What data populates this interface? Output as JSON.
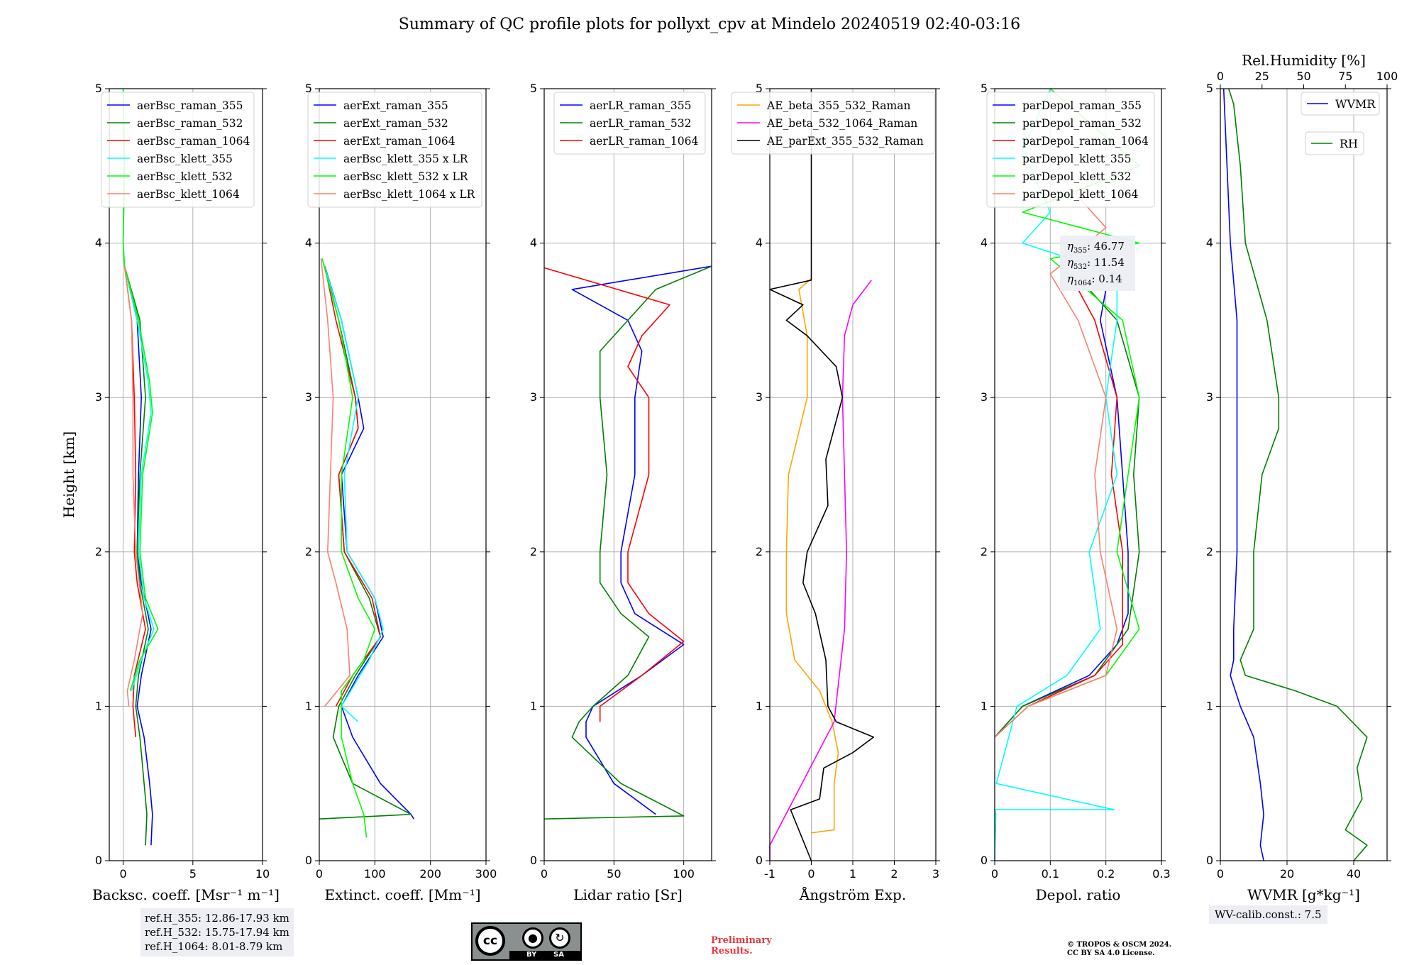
{
  "title": "Summary of QC profile plots for pollyxt_cpv at Mindelo 20240519 02:40-03:16",
  "colors": {
    "raman_355": "#0000ff",
    "raman_532": "#008000",
    "raman_1064": "#ff0000",
    "klett_355": "#00ffff",
    "klett_532": "#00ff00",
    "klett_1064": "#fa8072",
    "ae_beta_355_532": "#ffa500",
    "ae_beta_532_1064": "#ff00ff",
    "ae_parext": "#000000"
  },
  "chart_data": [
    {
      "type": "line",
      "id": "bsc",
      "xlabel": "Backsc. coeff. [Msr⁻¹ m⁻¹]",
      "ylabel": "Height [km]",
      "xlim": [
        -1,
        10
      ],
      "xticks": [
        0,
        5,
        10
      ],
      "ylim": [
        0,
        5
      ],
      "yticks": [
        0,
        1,
        2,
        3,
        4,
        5
      ],
      "grid": true,
      "legend": "top-left",
      "series": [
        {
          "name": "aerBsc_raman_355",
          "color": "#0000ff",
          "y": [
            0.1,
            0.3,
            0.5,
            0.8,
            1.0,
            1.2,
            1.5,
            1.8,
            2.0,
            2.5,
            3.0,
            3.5,
            3.85
          ],
          "x": [
            2.0,
            2.1,
            1.9,
            1.5,
            1.0,
            1.3,
            2.0,
            1.3,
            1.0,
            1.1,
            1.3,
            1.0,
            0.1
          ]
        },
        {
          "name": "aerBsc_raman_532",
          "color": "#008000",
          "y": [
            0.1,
            0.3,
            0.5,
            0.8,
            1.0,
            1.2,
            1.5,
            1.8,
            2.0,
            2.5,
            3.0,
            3.5,
            3.85
          ],
          "x": [
            1.6,
            1.7,
            1.5,
            1.2,
            0.9,
            1.1,
            1.8,
            1.2,
            1.0,
            1.2,
            1.6,
            1.2,
            0.1
          ]
        },
        {
          "name": "aerBsc_raman_1064",
          "color": "#ff0000",
          "y": [
            0.8,
            1.0,
            1.2,
            1.5,
            1.8,
            2.0,
            2.5,
            3.0,
            3.5,
            3.85
          ],
          "x": [
            0.9,
            0.7,
            0.8,
            1.6,
            1.0,
            0.8,
            0.9,
            0.8,
            0.6,
            0.1
          ]
        },
        {
          "name": "aerBsc_klett_355",
          "color": "#00ffff",
          "y": [
            1.1,
            1.3,
            1.5,
            1.7,
            2.0,
            2.5,
            2.9,
            3.1,
            3.5,
            3.85,
            4.0,
            4.5,
            5.0
          ],
          "x": [
            0.6,
            1.3,
            2.2,
            1.5,
            1.1,
            1.3,
            2.0,
            1.8,
            1.0,
            0.1,
            0.0,
            0.1,
            0.0
          ]
        },
        {
          "name": "aerBsc_klett_532",
          "color": "#00ff00",
          "y": [
            1.1,
            1.3,
            1.5,
            1.7,
            2.0,
            2.5,
            2.9,
            3.1,
            3.5,
            3.85,
            4.0,
            4.5,
            5.0
          ],
          "x": [
            0.5,
            1.2,
            2.5,
            1.6,
            1.2,
            1.4,
            2.1,
            1.9,
            1.1,
            0.1,
            0.0,
            0.1,
            0.0
          ]
        },
        {
          "name": "aerBsc_klett_1064",
          "color": "#fa8072",
          "y": [
            1.0,
            1.1,
            1.3,
            1.6,
            2.0,
            2.5,
            3.0,
            3.5,
            3.85
          ],
          "x": [
            0.4,
            0.3,
            0.8,
            1.4,
            0.9,
            0.7,
            0.7,
            0.6,
            0.1
          ]
        }
      ],
      "annotations": {
        "refheights": [
          "ref.H_355: 12.86-17.93 km",
          "ref.H_532: 15.75-17.94 km",
          "ref.H_1064: 8.01-8.79 km"
        ]
      }
    },
    {
      "type": "line",
      "id": "ext",
      "xlabel": "Extinct. coeff. [Mm⁻¹]",
      "xlim": [
        0,
        300
      ],
      "xticks": [
        0,
        100,
        200,
        300
      ],
      "ylim": [
        0,
        5
      ],
      "yticks": [
        0,
        1,
        2,
        3,
        4,
        5
      ],
      "grid": true,
      "legend": "top-left",
      "series": [
        {
          "name": "aerExt_raman_355",
          "color": "#0000ff",
          "y": [
            0.27,
            0.3,
            0.5,
            0.8,
            1.0,
            1.2,
            1.45,
            1.7,
            2.0,
            2.5,
            2.8,
            3.0,
            3.5,
            3.85
          ],
          "x": [
            170,
            165,
            110,
            60,
            40,
            70,
            115,
            100,
            50,
            40,
            80,
            70,
            40,
            10
          ]
        },
        {
          "name": "aerExt_raman_532",
          "color": "#008000",
          "y": [
            0.27,
            0.3,
            0.5,
            0.8,
            1.0,
            1.2,
            1.45,
            1.7,
            2.0,
            2.5,
            2.8,
            3.0,
            3.5,
            3.85
          ],
          "x": [
            0,
            165,
            60,
            25,
            35,
            65,
            110,
            90,
            45,
            35,
            70,
            65,
            35,
            10
          ]
        },
        {
          "name": "aerExt_raman_1064",
          "color": "#ff0000",
          "y": [
            1.0,
            1.2,
            1.45,
            1.7,
            2.0,
            2.5,
            2.8,
            3.0,
            3.5,
            3.85
          ],
          "x": [
            30,
            60,
            110,
            95,
            45,
            35,
            70,
            65,
            30,
            10
          ]
        },
        {
          "name": "aerBsc_klett_355 x LR",
          "color": "#00ffff",
          "y": [
            0.9,
            1.0,
            1.3,
            1.5,
            1.7,
            2.0,
            2.5,
            3.0,
            3.5,
            3.9
          ],
          "x": [
            70,
            40,
            90,
            115,
            100,
            50,
            45,
            70,
            40,
            5
          ]
        },
        {
          "name": "aerBsc_klett_532 x LR",
          "color": "#00ff00",
          "y": [
            0.15,
            0.3,
            0.5,
            0.8,
            1.1,
            1.3,
            1.5,
            1.7,
            2.0,
            2.5,
            3.0,
            3.5,
            3.9
          ],
          "x": [
            85,
            80,
            60,
            40,
            40,
            80,
            100,
            70,
            40,
            40,
            60,
            35,
            5
          ]
        },
        {
          "name": "aerBsc_klett_1064 x LR",
          "color": "#fa8072",
          "y": [
            1.0,
            1.2,
            1.5,
            1.8,
            2.0,
            2.5,
            3.0,
            3.5,
            3.9
          ],
          "x": [
            10,
            55,
            50,
            30,
            15,
            20,
            25,
            15,
            3
          ]
        }
      ]
    },
    {
      "type": "line",
      "id": "lr",
      "xlabel": "Lidar ratio [Sr]",
      "xlim": [
        0,
        120
      ],
      "xticks": [
        0,
        50,
        100
      ],
      "ylim": [
        0,
        5
      ],
      "yticks": [
        0,
        1,
        2,
        3,
        4,
        5
      ],
      "grid": true,
      "legend": "top-right",
      "series": [
        {
          "name": "aerLR_raman_355",
          "color": "#0000ff",
          "y": [
            0.3,
            0.5,
            0.8,
            0.9,
            1.0,
            1.2,
            1.4,
            1.6,
            1.8,
            2.0,
            2.5,
            3.0,
            3.3,
            3.5,
            3.7,
            3.85
          ],
          "x": [
            80,
            50,
            30,
            30,
            35,
            70,
            100,
            65,
            55,
            55,
            65,
            65,
            70,
            60,
            20,
            120
          ]
        },
        {
          "name": "aerLR_raman_532",
          "color": "#008000",
          "y": [
            0.27,
            0.29,
            0.5,
            0.8,
            0.9,
            1.0,
            1.2,
            1.45,
            1.6,
            1.8,
            2.0,
            2.5,
            3.0,
            3.3,
            3.5,
            3.7,
            3.85
          ],
          "x": [
            0,
            100,
            55,
            20,
            25,
            35,
            60,
            75,
            55,
            40,
            40,
            45,
            40,
            40,
            60,
            80,
            120
          ]
        },
        {
          "name": "aerLR_raman_1064",
          "color": "#ff0000",
          "y": [
            0.9,
            1.0,
            1.2,
            1.42,
            1.6,
            1.8,
            2.0,
            2.5,
            3.0,
            3.2,
            3.4,
            3.6,
            3.84
          ],
          "x": [
            40,
            40,
            70,
            100,
            75,
            60,
            60,
            75,
            75,
            60,
            70,
            90,
            0
          ]
        }
      ]
    },
    {
      "type": "line",
      "id": "ae",
      "xlabel": "Ångström Exp.",
      "xlim": [
        -1,
        3
      ],
      "xticks": [
        -1,
        0,
        1,
        2,
        3
      ],
      "ylim": [
        0,
        5
      ],
      "yticks": [
        0,
        1,
        2,
        3,
        4,
        5
      ],
      "grid": true,
      "legend": "top-left",
      "series": [
        {
          "name": "AE_beta_355_532_Raman",
          "color": "#ffa500",
          "y": [
            0.18,
            0.2,
            0.5,
            0.7,
            0.9,
            1.1,
            1.3,
            1.6,
            2.0,
            2.5,
            3.0,
            3.4,
            3.7,
            3.77
          ],
          "x": [
            0.0,
            0.55,
            0.55,
            0.65,
            0.5,
            0.2,
            -0.4,
            -0.6,
            -0.6,
            -0.55,
            -0.1,
            -0.1,
            -0.3,
            0.0
          ]
        },
        {
          "name": "AE_beta_532_1064_Raman",
          "color": "#ff00ff",
          "y": [
            0.0,
            0.1,
            0.9,
            1.5,
            2.0,
            2.5,
            3.0,
            3.4,
            3.6,
            3.76
          ],
          "x": [
            -1.0,
            -1.0,
            0.55,
            0.8,
            0.85,
            0.8,
            0.75,
            0.8,
            1.0,
            1.45
          ]
        },
        {
          "name": "AE_parExt_355_532_Raman",
          "color": "#000000",
          "y": [
            0.0,
            0.33,
            0.4,
            0.6,
            0.7,
            0.8,
            0.9,
            1.0,
            1.3,
            1.6,
            1.8,
            2.0,
            2.3,
            2.6,
            3.0,
            3.2,
            3.4,
            3.5,
            3.6,
            3.7,
            3.76,
            4.0,
            4.5,
            5.0
          ],
          "x": [
            0.0,
            -0.5,
            0.2,
            0.3,
            1.0,
            1.5,
            0.6,
            0.4,
            0.35,
            0.1,
            -0.2,
            -0.1,
            0.4,
            0.35,
            0.75,
            0.6,
            -0.1,
            -0.6,
            -0.2,
            -1.0,
            0.0,
            0.0,
            0.0,
            0.0
          ]
        }
      ]
    },
    {
      "type": "line",
      "id": "depol",
      "xlabel": "Depol. ratio",
      "xlim": [
        0.0,
        0.3
      ],
      "xticks": [
        0.0,
        0.1,
        0.2,
        0.3
      ],
      "ylim": [
        0,
        5
      ],
      "yticks": [
        0,
        1,
        2,
        3,
        4,
        5
      ],
      "grid": true,
      "legend": "top-left",
      "series": [
        {
          "name": "parDepol_raman_355",
          "color": "#0000ff",
          "y": [
            0.8,
            1.0,
            1.2,
            1.4,
            1.6,
            2.0,
            2.5,
            3.0,
            3.5,
            3.7
          ],
          "x": [
            0.0,
            0.05,
            0.17,
            0.22,
            0.24,
            0.24,
            0.23,
            0.22,
            0.19,
            0.2
          ]
        },
        {
          "name": "parDepol_raman_532",
          "color": "#008000",
          "y": [
            0.8,
            1.0,
            1.2,
            1.5,
            2.0,
            2.5,
            3.0,
            3.5,
            3.7
          ],
          "x": [
            0.0,
            0.05,
            0.18,
            0.24,
            0.26,
            0.25,
            0.26,
            0.22,
            0.17
          ]
        },
        {
          "name": "parDepol_raman_1064",
          "color": "#ff0000",
          "y": [
            0.8,
            1.0,
            1.2,
            1.4,
            2.0,
            2.5,
            3.0,
            3.5,
            3.7
          ],
          "x": [
            0.0,
            0.06,
            0.18,
            0.23,
            0.23,
            0.21,
            0.22,
            0.18,
            0.15
          ]
        },
        {
          "name": "parDepol_klett_355",
          "color": "#00ffff",
          "y": [
            0.0,
            0.3,
            0.33,
            0.33,
            0.5,
            1.0,
            1.2,
            1.5,
            2.0,
            2.5,
            3.0,
            3.5,
            3.8,
            4.0,
            4.2,
            4.6,
            5.0
          ],
          "x": [
            0.0,
            0.002,
            0.0,
            0.215,
            0.003,
            0.04,
            0.13,
            0.19,
            0.17,
            0.22,
            0.2,
            0.22,
            0.22,
            0.05,
            0.1,
            0.05,
            0.1
          ]
        },
        {
          "name": "parDepol_klett_532",
          "color": "#00ff00",
          "y": [
            0.8,
            1.0,
            1.2,
            1.5,
            2.0,
            2.5,
            3.0,
            3.5,
            3.9,
            4.0,
            4.2,
            4.5,
            5.0
          ],
          "x": [
            0.0,
            0.06,
            0.2,
            0.26,
            0.22,
            0.24,
            0.26,
            0.23,
            0.1,
            0.26,
            0.05,
            0.26,
            0.1
          ]
        },
        {
          "name": "parDepol_klett_1064",
          "color": "#fa8072",
          "y": [
            0.8,
            1.0,
            1.2,
            1.5,
            2.0,
            2.5,
            3.0,
            3.5,
            3.8,
            4.1,
            4.3
          ],
          "x": [
            0.0,
            0.06,
            0.2,
            0.22,
            0.19,
            0.18,
            0.2,
            0.15,
            0.1,
            0.2,
            0.15
          ]
        }
      ],
      "annotations": {
        "eta_355": "46.77",
        "eta_532": "11.54",
        "eta_1064": "0.14"
      }
    },
    {
      "type": "line",
      "id": "wvmr",
      "xlabel": "WVMR [g*kg⁻¹]",
      "x2label": "Rel.Humidity [%]",
      "xlim": [
        0,
        50
      ],
      "xticks": [
        0,
        20,
        40
      ],
      "x2lim": [
        0,
        100
      ],
      "x2ticks": [
        0,
        25,
        50,
        75,
        100
      ],
      "ylim": [
        0,
        5
      ],
      "yticks": [
        0,
        1,
        2,
        3,
        4,
        5
      ],
      "grid": true,
      "legend": "top-right",
      "series": [
        {
          "name": "WVMR",
          "color": "#0000ff",
          "axis": "x",
          "y": [
            0.0,
            0.1,
            0.3,
            0.5,
            0.8,
            1.0,
            1.2,
            1.3,
            1.5,
            2.0,
            2.5,
            3.0,
            3.5,
            4.0,
            4.5,
            5.0
          ],
          "x": [
            13,
            12,
            13,
            12,
            10,
            6,
            3,
            4,
            4,
            5,
            5,
            5,
            5,
            3,
            2,
            1
          ]
        },
        {
          "name": "RH",
          "color": "#008000",
          "axis": "x2",
          "y": [
            0.0,
            0.1,
            0.2,
            0.4,
            0.6,
            0.8,
            1.0,
            1.1,
            1.2,
            1.3,
            1.5,
            2.0,
            2.5,
            2.8,
            3.0,
            3.5,
            4.0,
            4.5,
            4.9,
            5.0
          ],
          "x": [
            80,
            88,
            75,
            85,
            82,
            88,
            70,
            45,
            15,
            12,
            20,
            20,
            25,
            35,
            35,
            28,
            15,
            12,
            8,
            5
          ]
        }
      ],
      "annotations": {
        "calib": "WV-calib.const.: 7.5"
      }
    }
  ],
  "panel_labels": {
    "ylabel": "Height [km]",
    "eta_prefix": "η",
    "eta_355_sub": "355",
    "eta_532_sub": "532",
    "eta_1064_sub": "1064"
  },
  "footer": {
    "prelim_line1": "Preliminary",
    "prelim_line2": "Results.",
    "copyright_line1": "© TROPOS & OSCM 2024.",
    "copyright_line2": "CC BY SA 4.0 License.",
    "cc_label": "cc",
    "by_label": "BY",
    "sa_label": "SA"
  }
}
